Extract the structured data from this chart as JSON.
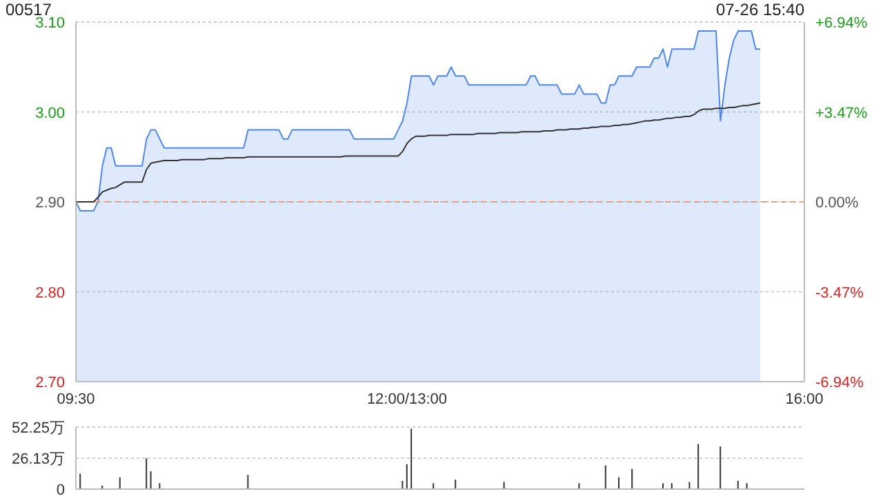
{
  "chart_data": [
    {
      "type": "line",
      "title": "00517",
      "annotations": [
        "07-26 15:40"
      ],
      "categories": [
        "09:30",
        null,
        null,
        null,
        null,
        null,
        null,
        null,
        null,
        null,
        null,
        null,
        null,
        null,
        null,
        null,
        null,
        null,
        null,
        null,
        null,
        null,
        null,
        null,
        null,
        null,
        null,
        null,
        null,
        null,
        null,
        null,
        null,
        null,
        null,
        null,
        null,
        null,
        null,
        null,
        null,
        null,
        null,
        null,
        null,
        null,
        null,
        null,
        null,
        null,
        null,
        null,
        null,
        null,
        null,
        null,
        null,
        null,
        null,
        null,
        null,
        null,
        null,
        null,
        null,
        null,
        null,
        null,
        null,
        null,
        null,
        null,
        null,
        null,
        null,
        "12:00/13:00",
        null,
        null,
        null,
        null,
        null,
        null,
        null,
        null,
        null,
        null,
        null,
        null,
        null,
        null,
        null,
        null,
        null,
        null,
        null,
        null,
        null,
        null,
        null,
        null,
        null,
        null,
        null,
        null,
        null,
        null,
        null,
        null,
        null,
        null,
        null,
        null,
        null,
        null,
        null,
        null,
        null,
        null,
        null,
        null,
        null,
        null,
        null,
        null,
        null,
        null,
        null,
        null,
        null,
        null,
        null,
        null,
        null,
        null,
        null,
        null,
        null,
        null,
        null,
        null,
        null,
        null,
        null,
        null,
        null,
        null,
        null,
        null,
        null,
        null,
        null,
        null,
        null,
        null,
        null,
        null,
        null,
        null,
        null,
        null,
        null,
        null,
        null,
        null,
        null,
        "16:00"
      ],
      "ylim": [
        2.7,
        3.1
      ],
      "yticks": [
        {
          "value": 2.7,
          "label": "2.70"
        },
        {
          "value": 2.8,
          "label": "2.80"
        },
        {
          "value": 2.9,
          "label": "2.90"
        },
        {
          "value": 3.0,
          "label": "3.00"
        },
        {
          "value": 3.1,
          "label": "3.10"
        }
      ],
      "y2lim": [
        -6.94,
        6.94
      ],
      "y2ticks": [
        {
          "value": -6.94,
          "label": "-6.94%"
        },
        {
          "value": -3.47,
          "label": "-3.47%"
        },
        {
          "value": 0,
          "label": "0.00%"
        },
        {
          "value": 3.47,
          "label": "+3.47%"
        },
        {
          "value": 6.94,
          "label": "+6.94%"
        }
      ],
      "grid": "y",
      "ref_lines": [
        {
          "axis": "y",
          "value": 2.9,
          "color": "#e0a07a",
          "line_style": "dashed"
        }
      ],
      "series": [
        {
          "type": "area",
          "color": "#4f86ec",
          "values": [
            2.9,
            2.89,
            2.89,
            2.89,
            2.89,
            2.9,
            2.94,
            2.96,
            2.96,
            2.94,
            2.94,
            2.94,
            2.94,
            2.94,
            2.94,
            2.94,
            2.97,
            2.98,
            2.98,
            2.97,
            2.96,
            2.96,
            2.96,
            2.96,
            2.96,
            2.96,
            2.96,
            2.96,
            2.96,
            2.96,
            2.96,
            2.96,
            2.96,
            2.96,
            2.96,
            2.96,
            2.96,
            2.96,
            2.96,
            2.98,
            2.98,
            2.98,
            2.98,
            2.98,
            2.98,
            2.98,
            2.98,
            2.97,
            2.97,
            2.98,
            2.98,
            2.98,
            2.98,
            2.98,
            2.98,
            2.98,
            2.98,
            2.98,
            2.98,
            2.98,
            2.98,
            2.98,
            2.98,
            2.97,
            2.97,
            2.97,
            2.97,
            2.97,
            2.97,
            2.97,
            2.97,
            2.97,
            2.97,
            2.98,
            2.99,
            3.01,
            3.04,
            3.04,
            3.04,
            3.04,
            3.04,
            3.03,
            3.04,
            3.04,
            3.04,
            3.05,
            3.04,
            3.04,
            3.04,
            3.03,
            3.03,
            3.03,
            3.03,
            3.03,
            3.03,
            3.03,
            3.03,
            3.03,
            3.03,
            3.03,
            3.03,
            3.03,
            3.03,
            3.04,
            3.04,
            3.03,
            3.03,
            3.03,
            3.03,
            3.03,
            3.02,
            3.02,
            3.02,
            3.02,
            3.03,
            3.02,
            3.02,
            3.02,
            3.02,
            3.01,
            3.01,
            3.03,
            3.03,
            3.04,
            3.04,
            3.04,
            3.04,
            3.05,
            3.05,
            3.05,
            3.05,
            3.06,
            3.06,
            3.07,
            3.05,
            3.07,
            3.07,
            3.07,
            3.07,
            3.07,
            3.07,
            3.09,
            3.09,
            3.09,
            3.09,
            3.09,
            2.99,
            3.03,
            3.06,
            3.08,
            3.09,
            3.09,
            3.09,
            3.09,
            3.07,
            3.07,
            null,
            null,
            null,
            null,
            null,
            null,
            null,
            null,
            null,
            null
          ]
        },
        {
          "type": "line",
          "color": "#333333",
          "values": [
            2.9,
            2.9,
            2.9,
            2.9,
            2.9,
            2.905,
            2.911,
            2.913,
            2.915,
            2.916,
            2.919,
            2.922,
            2.922,
            2.922,
            2.922,
            2.922,
            2.936,
            2.943,
            2.944,
            2.945,
            2.946,
            2.946,
            2.946,
            2.946,
            2.947,
            2.947,
            2.947,
            2.947,
            2.947,
            2.947,
            2.948,
            2.948,
            2.948,
            2.948,
            2.949,
            2.949,
            2.949,
            2.949,
            2.949,
            2.95,
            2.95,
            2.95,
            2.95,
            2.95,
            2.95,
            2.95,
            2.95,
            2.95,
            2.95,
            2.95,
            2.95,
            2.95,
            2.95,
            2.95,
            2.95,
            2.95,
            2.95,
            2.95,
            2.95,
            2.95,
            2.95,
            2.951,
            2.951,
            2.951,
            2.951,
            2.951,
            2.951,
            2.951,
            2.951,
            2.951,
            2.951,
            2.951,
            2.951,
            2.951,
            2.956,
            2.965,
            2.97,
            2.973,
            2.973,
            2.973,
            2.974,
            2.974,
            2.974,
            2.974,
            2.974,
            2.975,
            2.975,
            2.975,
            2.975,
            2.975,
            2.975,
            2.976,
            2.976,
            2.976,
            2.976,
            2.976,
            2.977,
            2.977,
            2.977,
            2.977,
            2.977,
            2.978,
            2.978,
            2.978,
            2.978,
            2.978,
            2.979,
            2.979,
            2.979,
            2.98,
            2.98,
            2.98,
            2.981,
            2.981,
            2.981,
            2.982,
            2.982,
            2.983,
            2.983,
            2.984,
            2.984,
            2.984,
            2.985,
            2.985,
            2.986,
            2.986,
            2.987,
            2.988,
            2.989,
            2.99,
            2.99,
            2.991,
            2.991,
            2.992,
            2.993,
            2.993,
            2.994,
            2.994,
            2.995,
            2.995,
            2.997,
            3.001,
            3.003,
            3.003,
            3.003,
            3.004,
            3.004,
            3.004,
            3.005,
            3.005,
            3.006,
            3.007,
            3.007,
            3.008,
            3.009,
            3.01,
            null,
            null,
            null,
            null,
            null,
            null,
            null,
            null,
            null,
            null
          ]
        }
      ]
    },
    {
      "type": "bar",
      "color": "#333333",
      "categories": [
        null,
        null,
        null,
        null,
        null,
        null,
        null,
        null,
        null,
        null,
        null,
        null,
        null,
        null,
        null,
        null,
        null,
        null,
        null,
        null,
        null,
        null,
        null,
        null,
        null,
        null,
        null,
        null,
        null,
        null,
        null,
        null,
        null,
        null,
        null,
        null,
        null,
        null,
        null,
        null,
        null,
        null,
        null,
        null,
        null,
        null,
        null,
        null,
        null,
        null,
        null,
        null,
        null,
        null,
        null,
        null,
        null,
        null,
        null,
        null,
        null,
        null,
        null,
        null,
        null,
        null,
        null,
        null,
        null,
        null,
        null,
        null,
        null,
        null,
        null,
        null,
        null,
        null,
        null,
        null,
        null,
        null,
        null,
        null,
        null,
        null,
        null,
        null,
        null,
        null,
        null,
        null,
        null,
        null,
        null,
        null,
        null,
        null,
        null,
        null,
        null,
        null,
        null,
        null,
        null,
        null,
        null,
        null,
        null,
        null,
        null,
        null,
        null,
        null,
        null,
        null,
        null,
        null,
        null,
        null,
        null,
        null,
        null,
        null,
        null,
        null,
        null,
        null,
        null,
        null,
        null,
        null,
        null,
        null,
        null,
        null,
        null,
        null,
        null,
        null,
        null,
        null,
        null,
        null,
        null,
        null,
        null,
        null,
        null,
        null,
        null,
        null,
        null,
        null,
        null,
        null,
        null,
        null,
        null,
        null,
        null,
        null,
        null,
        null,
        null,
        null
      ],
      "values": [
        null,
        13,
        null,
        null,
        null,
        null,
        3,
        null,
        null,
        null,
        10,
        null,
        null,
        null,
        null,
        null,
        26,
        15,
        null,
        5,
        null,
        null,
        null,
        null,
        null,
        null,
        null,
        null,
        null,
        null,
        null,
        null,
        null,
        null,
        null,
        null,
        null,
        null,
        null,
        12,
        null,
        null,
        null,
        null,
        null,
        null,
        null,
        null,
        null,
        null,
        null,
        null,
        null,
        null,
        null,
        null,
        null,
        null,
        null,
        null,
        null,
        null,
        null,
        null,
        null,
        null,
        null,
        null,
        null,
        null,
        null,
        null,
        null,
        null,
        7,
        21,
        51,
        null,
        null,
        null,
        null,
        5,
        null,
        null,
        null,
        null,
        8,
        null,
        null,
        null,
        null,
        null,
        null,
        null,
        null,
        null,
        null,
        6,
        null,
        null,
        null,
        null,
        null,
        null,
        null,
        null,
        null,
        null,
        null,
        null,
        null,
        null,
        null,
        null,
        5,
        null,
        null,
        null,
        null,
        null,
        20,
        null,
        null,
        10,
        null,
        null,
        17,
        null,
        null,
        null,
        null,
        null,
        null,
        5,
        null,
        5,
        null,
        null,
        null,
        6,
        null,
        38,
        null,
        null,
        null,
        null,
        36,
        null,
        null,
        null,
        7,
        null,
        5,
        null,
        null,
        null,
        null,
        null,
        null,
        null,
        null,
        null,
        null,
        null,
        null,
        null
      ],
      "ylim": [
        0,
        52.25
      ],
      "yticks": [
        0,
        {
          "value": 26.13,
          "label": "26.13万"
        },
        {
          "value": 52.25,
          "label": "52.25万"
        }
      ],
      "grid": "y",
      "tick_labels": "y"
    }
  ]
}
